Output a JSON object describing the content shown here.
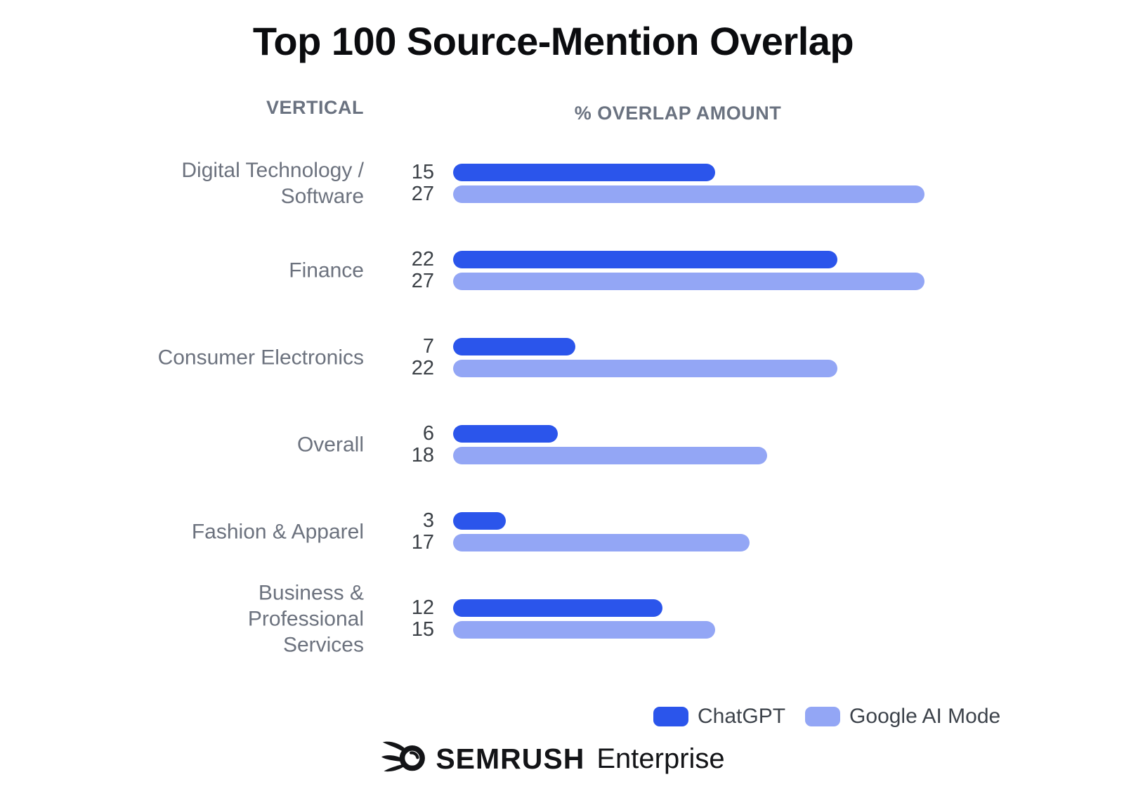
{
  "title": "Top 100 Source-Mention Overlap",
  "columns": {
    "vertical": "VERTICAL",
    "overlap": "% OVERLAP AMOUNT"
  },
  "legend": [
    {
      "name": "ChatGPT",
      "color": "#2b55eb"
    },
    {
      "name": "Google AI Mode",
      "color": "#93a6f5"
    }
  ],
  "footer": {
    "brand": "SEMRUSH",
    "suffix": "Enterprise",
    "logo_icon": "semrush-comet-icon"
  },
  "colors": {
    "chatgpt_bar": "#2b55eb",
    "google_ai_mode_bar": "#93a6f5",
    "title_text": "#0b0c0f",
    "header_text": "#6a7280",
    "category_text": "#6c727e",
    "value_text": "#3b4046"
  },
  "chart_data": {
    "type": "bar",
    "orientation": "horizontal",
    "title": "Top 100 Source-Mention Overlap",
    "xlabel": "% OVERLAP AMOUNT",
    "ylabel": "VERTICAL",
    "unit": "percent",
    "xlim": [
      0,
      27
    ],
    "grid": false,
    "value_labels_shown": true,
    "legend_position": "bottom-right",
    "categories": [
      "Digital Technology / Software",
      "Finance",
      "Consumer Electronics",
      "Overall",
      "Fashion & Apparel",
      "Business & Professional Services"
    ],
    "category_lines": [
      [
        "Digital Technology /",
        "Software"
      ],
      [
        "Finance"
      ],
      [
        "Consumer Electronics"
      ],
      [
        "Overall"
      ],
      [
        "Fashion & Apparel"
      ],
      [
        "Business &",
        "Professional",
        "Services"
      ]
    ],
    "series": [
      {
        "name": "ChatGPT",
        "color": "#2b55eb",
        "values": [
          15,
          22,
          7,
          6,
          3,
          12
        ]
      },
      {
        "name": "Google AI Mode",
        "color": "#93a6f5",
        "values": [
          27,
          27,
          22,
          18,
          17,
          15
        ]
      }
    ]
  }
}
